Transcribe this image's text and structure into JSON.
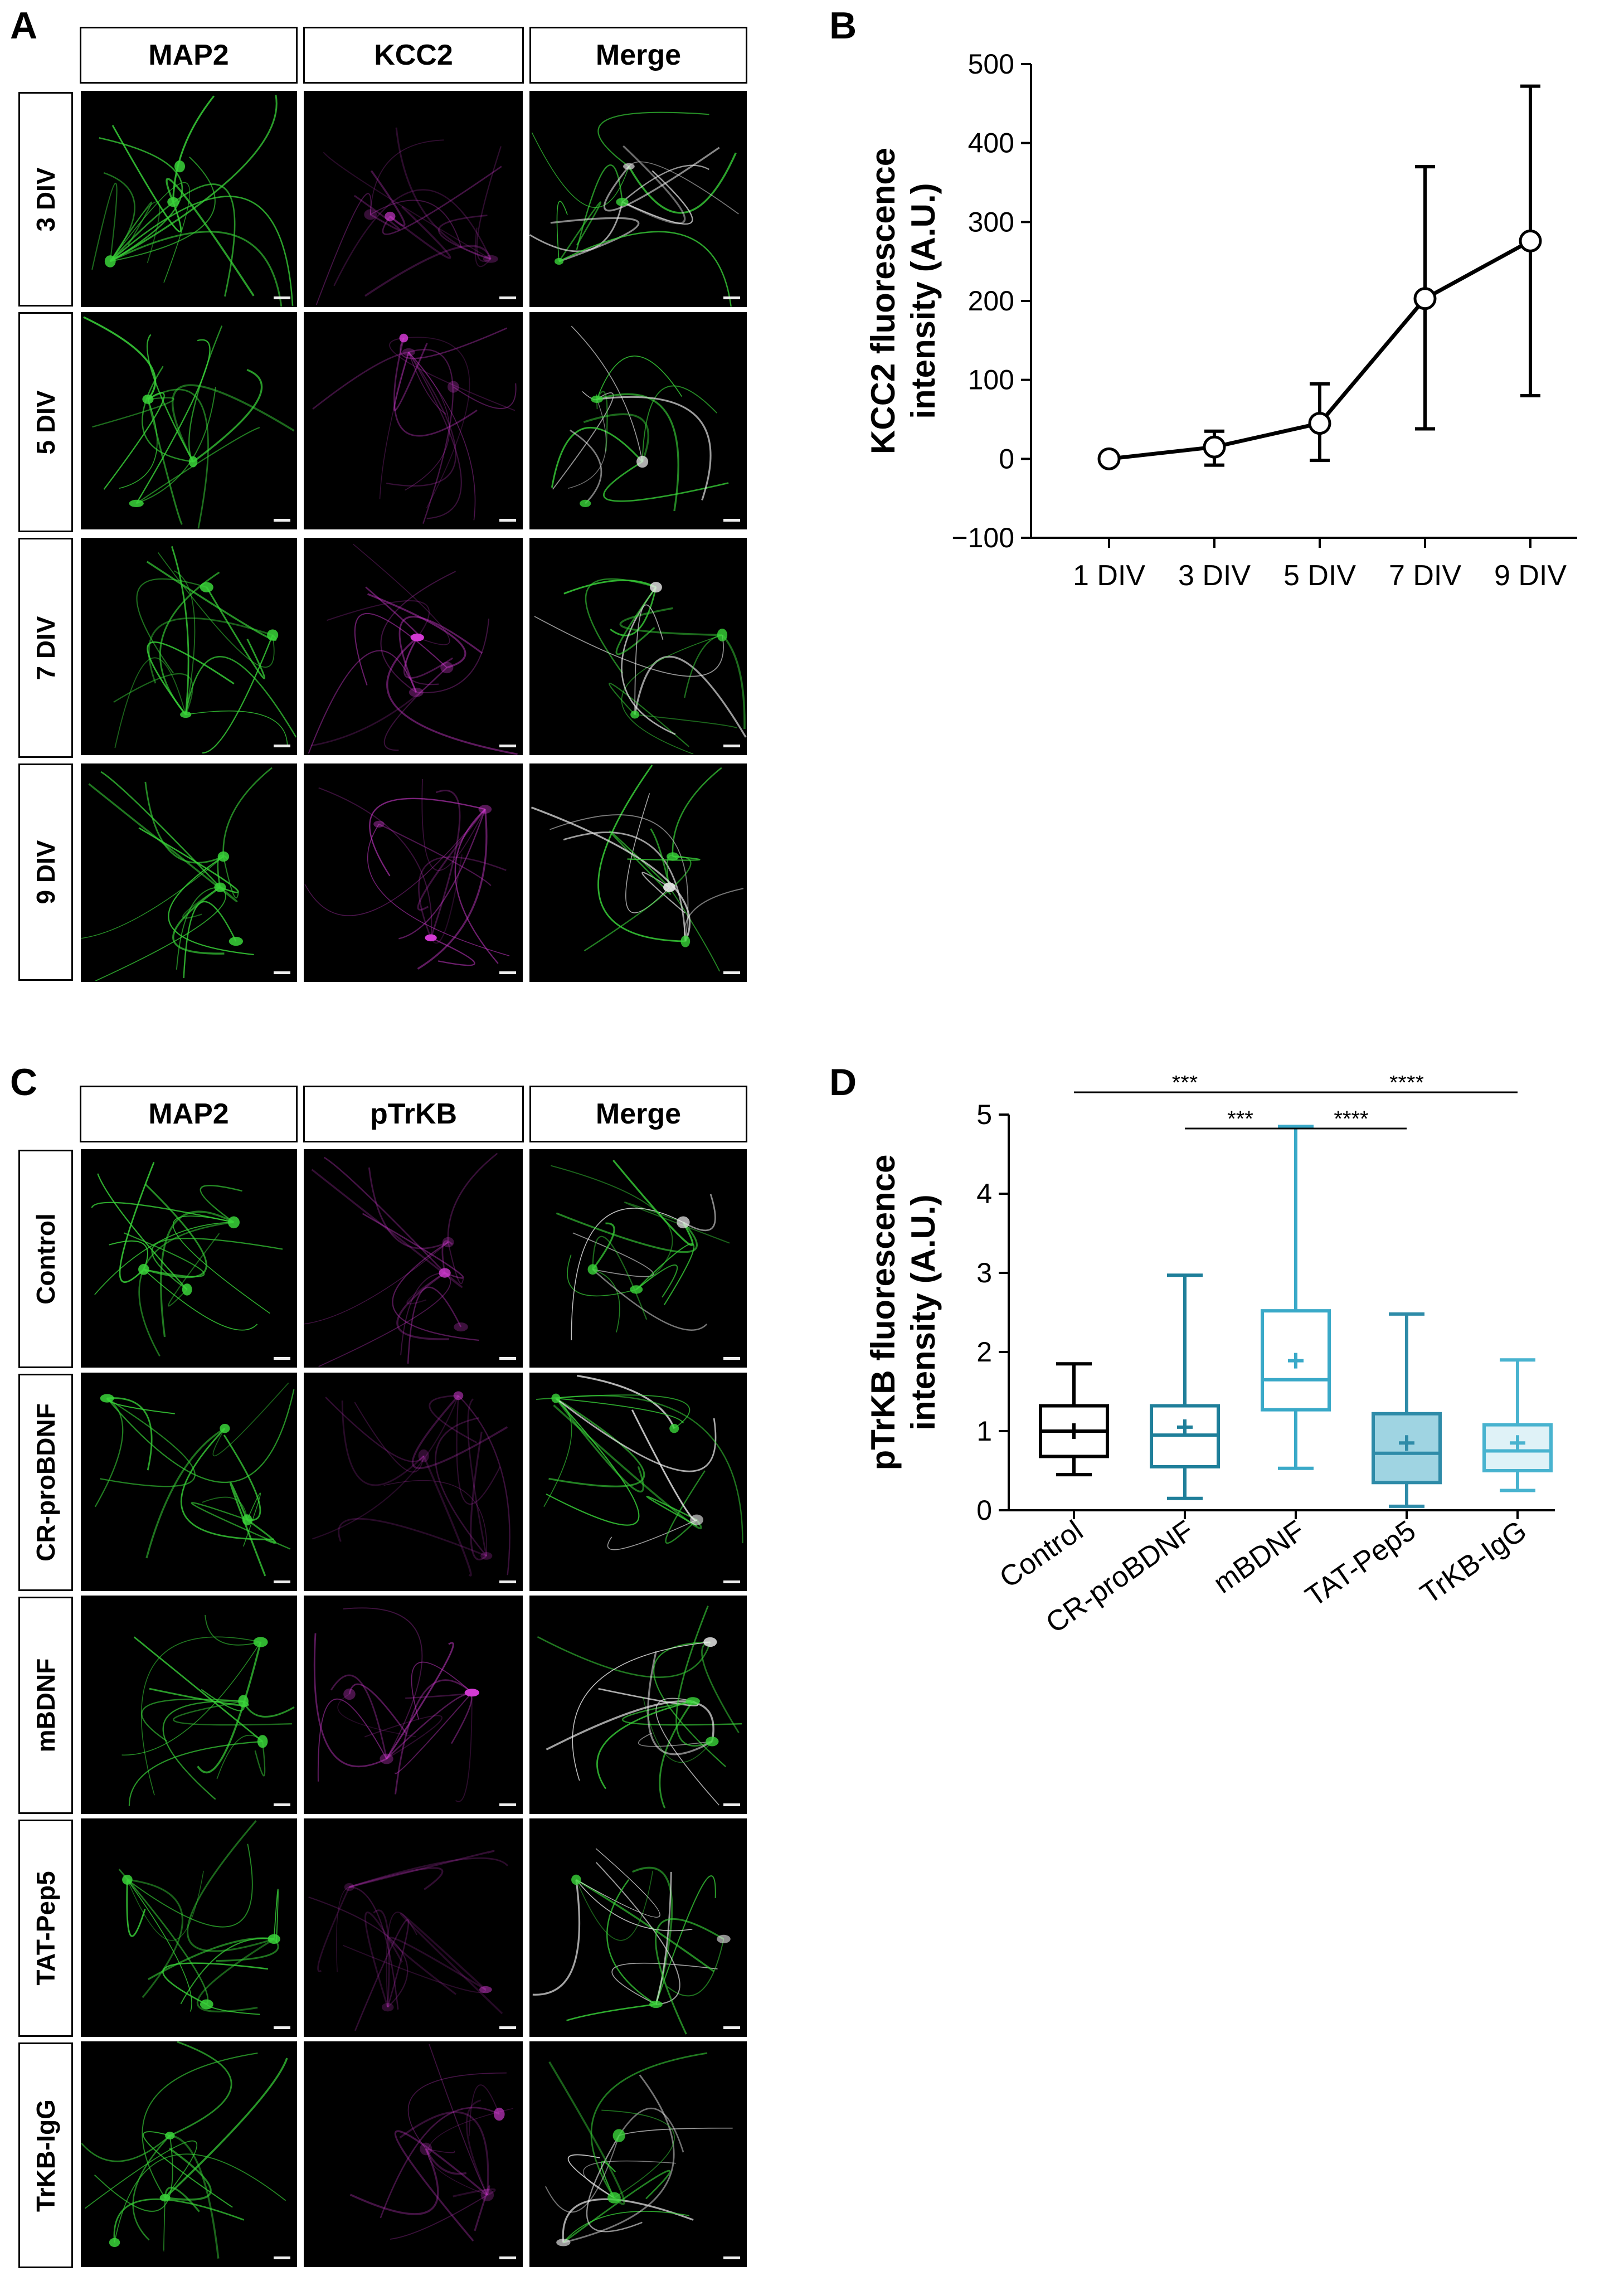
{
  "panels": {
    "A": {
      "letter": "A",
      "columns": [
        "MAP2",
        "KCC2",
        "Merge"
      ],
      "rows": [
        "3 DIV",
        "5 DIV",
        "7 DIV",
        "9 DIV"
      ]
    },
    "B": {
      "letter": "B"
    },
    "C": {
      "letter": "C",
      "columns": [
        "MAP2",
        "pTrKB",
        "Merge"
      ],
      "rows": [
        "Control",
        "CR-proBDNF",
        "mBDNF",
        "TAT-Pep5",
        "TrKB-IgG"
      ]
    },
    "D": {
      "letter": "D"
    }
  },
  "colors": {
    "map2_channel": "#39d439",
    "kcc2_channel": "#d23ad2",
    "merge_soma": "#e8e8e8",
    "control": "#000000",
    "cr_probdnf": "#1f7f9a",
    "mbdnf": "#3aa9c8",
    "tat_pep5": "#2e8ba8",
    "tat_pep5_fill": "#9fd4e2",
    "trkb_igg": "#48b3cf",
    "trkb_igg_fill": "#dff2f7"
  },
  "chart_data": [
    {
      "panel": "B",
      "type": "line",
      "ylabel_line1": "KCC2 fluorescence",
      "ylabel_line2": "intensity (A.U.)",
      "categories": [
        "1 DIV",
        "3 DIV",
        "5 DIV",
        "7 DIV",
        "9 DIV"
      ],
      "values": [
        0,
        15,
        45,
        203,
        276
      ],
      "error_low": [
        0,
        -8,
        -2,
        38,
        80
      ],
      "error_high": [
        0,
        35,
        95,
        370,
        472
      ],
      "ylim": [
        -100,
        500
      ],
      "yticks": [
        -100,
        0,
        100,
        200,
        300,
        400,
        500
      ],
      "ytick_labels": [
        "−100",
        "0",
        "100",
        "200",
        "300",
        "400",
        "500"
      ],
      "marker": "open-circle"
    },
    {
      "panel": "D",
      "type": "box",
      "ylabel_line1": "pTrKB fluorescence",
      "ylabel_line2": "intensity (A.U.)",
      "categories": [
        "Control",
        "CR-proBDNF",
        "mBDNF",
        "TAT-Pep5",
        "TrKB-IgG"
      ],
      "boxes": [
        {
          "min": 0.45,
          "q1": 0.68,
          "median": 1.0,
          "q3": 1.32,
          "max": 1.85,
          "mean": 1.0
        },
        {
          "min": 0.15,
          "q1": 0.55,
          "median": 0.95,
          "q3": 1.32,
          "max": 2.97,
          "mean": 1.05
        },
        {
          "min": 0.53,
          "q1": 1.27,
          "median": 1.65,
          "q3": 2.52,
          "max": 4.85,
          "mean": 1.89
        },
        {
          "min": 0.05,
          "q1": 0.35,
          "median": 0.72,
          "q3": 1.22,
          "max": 2.48,
          "mean": 0.85
        },
        {
          "min": 0.25,
          "q1": 0.5,
          "median": 0.75,
          "q3": 1.08,
          "max": 1.9,
          "mean": 0.85
        }
      ],
      "ylim": [
        0,
        5
      ],
      "yticks": [
        0,
        1,
        2,
        3,
        4,
        5
      ],
      "significance": [
        {
          "from": 0,
          "to": 2,
          "label": "***"
        },
        {
          "from": 2,
          "to": 4,
          "label": "****"
        },
        {
          "from": 1,
          "to": 2,
          "label": "***"
        },
        {
          "from": 2,
          "to": 3,
          "label": "****"
        }
      ]
    }
  ]
}
